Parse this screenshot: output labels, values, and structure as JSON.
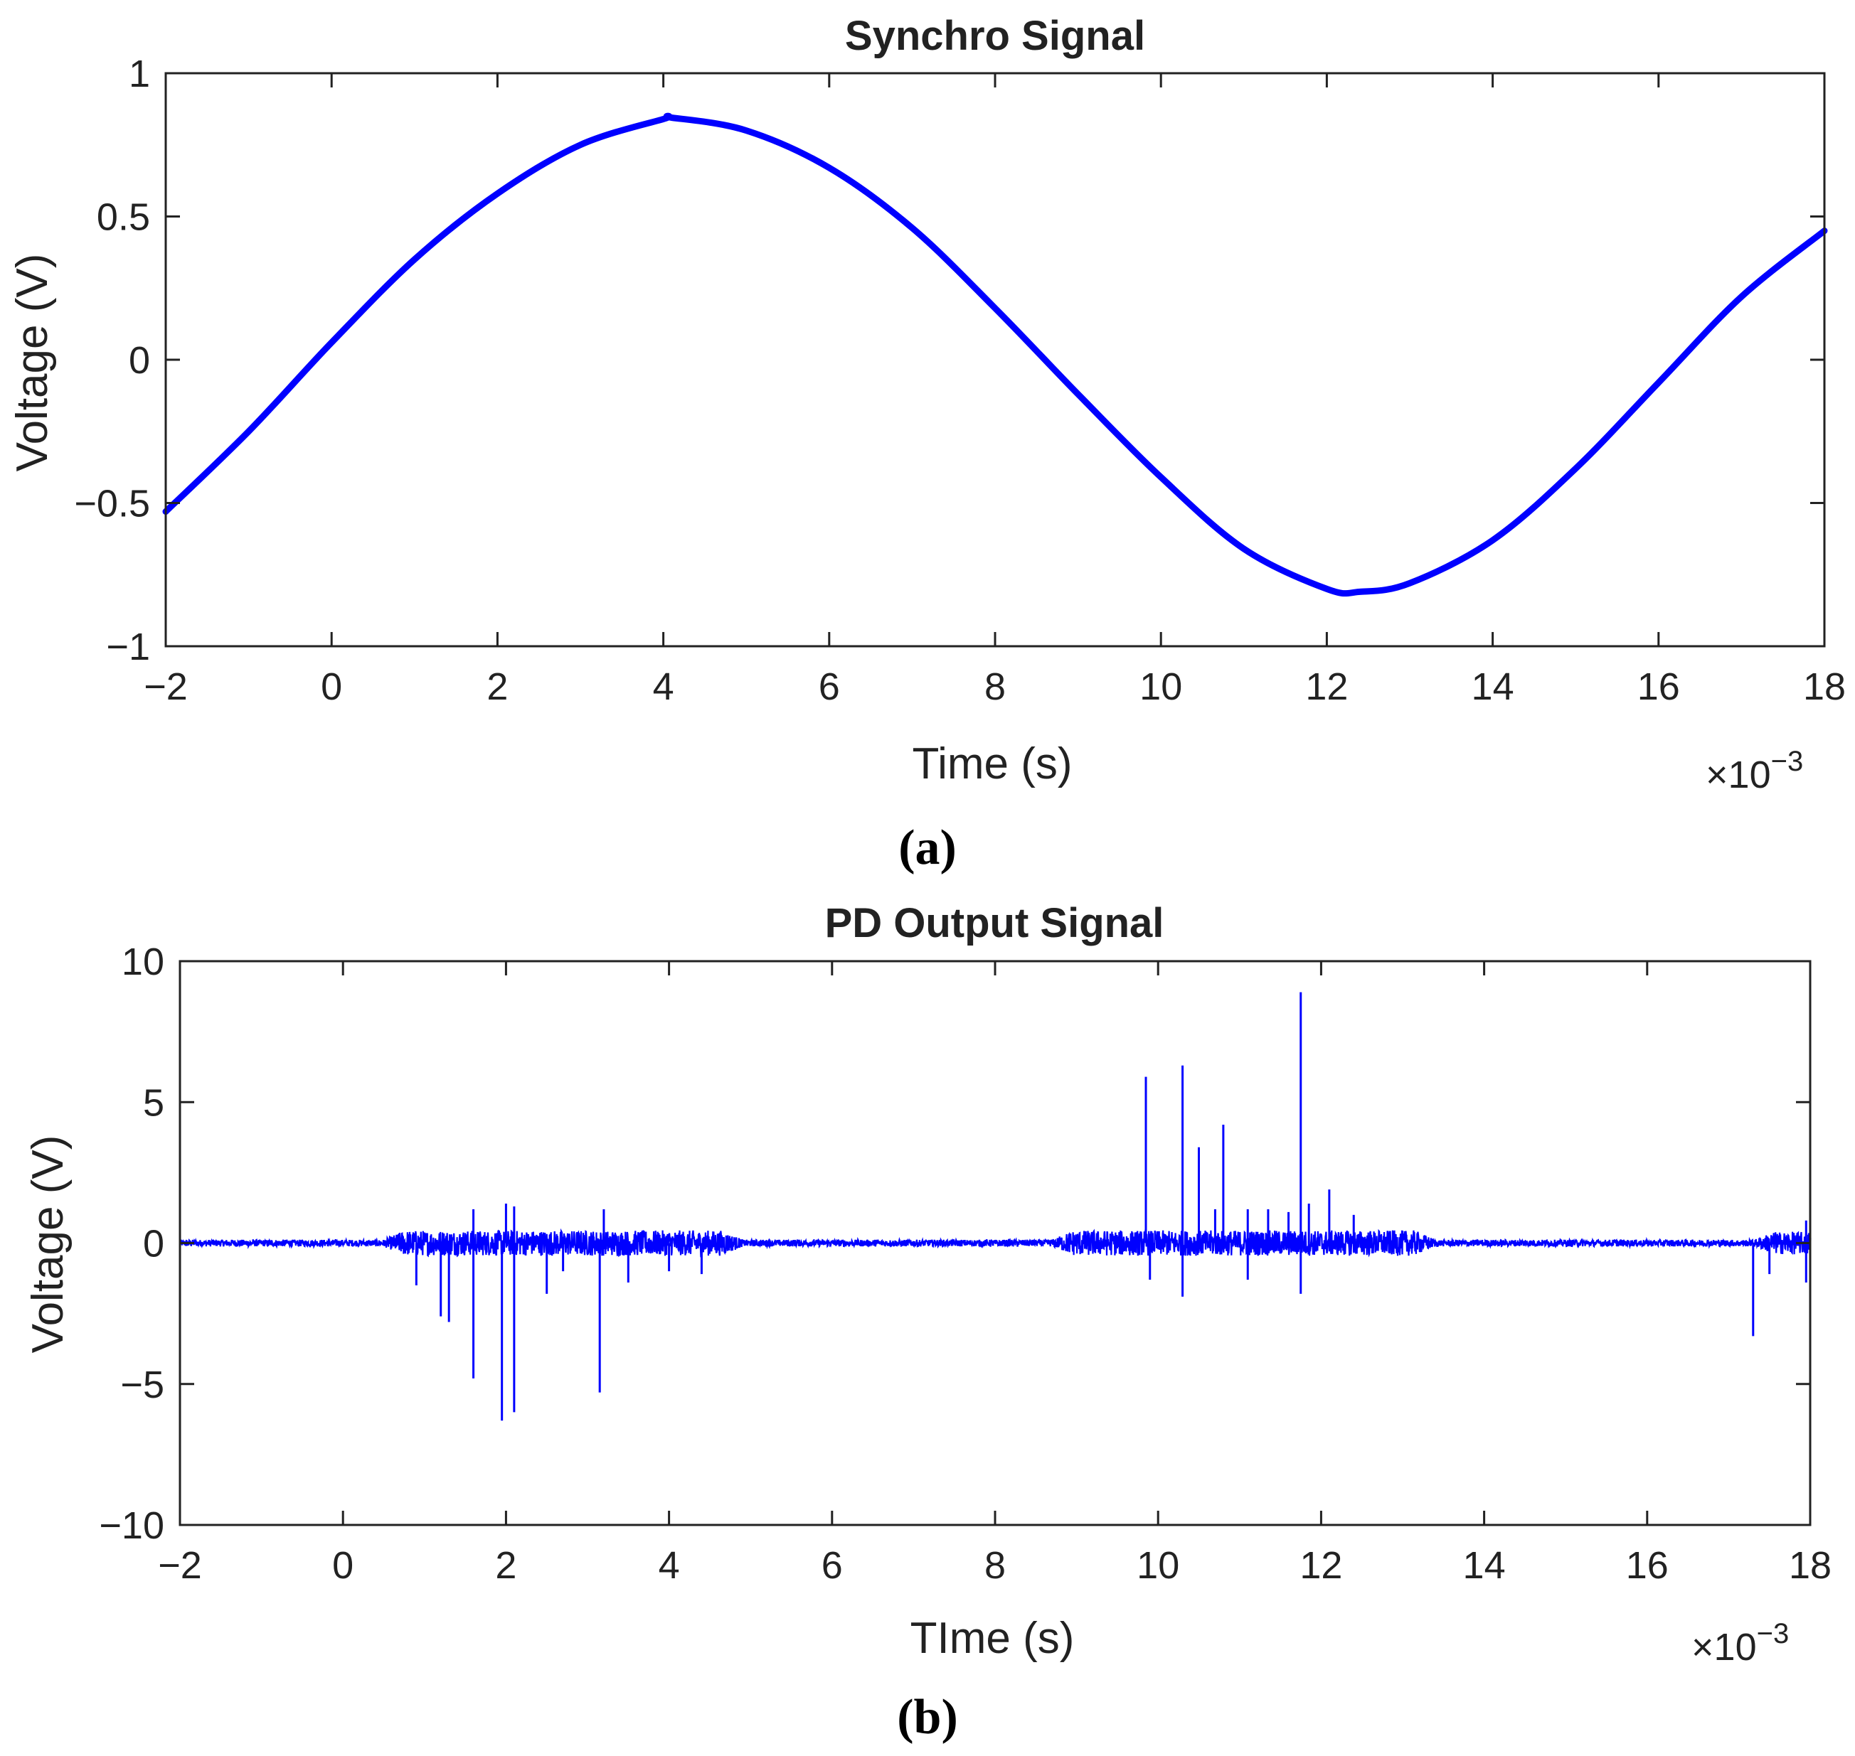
{
  "figure": {
    "panels": [
      {
        "panel_label": "(a)"
      },
      {
        "panel_label": "(b)"
      }
    ]
  },
  "chart_data": [
    {
      "type": "line",
      "title": "Synchro Signal",
      "xlabel": "Time (s)",
      "ylabel": "Voltage (V)",
      "x_multiplier": "×10",
      "x_multiplier_exponent": "−3",
      "xlim": [
        -2,
        18
      ],
      "ylim": [
        -1,
        1
      ],
      "xticks": [
        -2,
        0,
        2,
        4,
        6,
        8,
        10,
        12,
        14,
        16,
        18
      ],
      "xtick_labels": [
        "−2",
        "0",
        "2",
        "4",
        "6",
        "8",
        "10",
        "12",
        "14",
        "16",
        "18"
      ],
      "yticks": [
        1,
        0.5,
        0,
        -0.5,
        -1
      ],
      "ytick_labels": [
        "1",
        "0.5",
        "0",
        "−0.5",
        "−1"
      ],
      "grid": false,
      "color": "#0000ff",
      "series": [
        {
          "x": [
            -2,
            -1,
            0,
            1,
            2,
            3,
            4,
            4.1,
            5,
            6,
            7,
            8,
            9,
            10,
            11,
            12,
            12.4,
            13,
            14,
            15,
            16,
            17,
            18
          ],
          "y": [
            -0.53,
            -0.25,
            0.06,
            0.35,
            0.58,
            0.75,
            0.84,
            0.845,
            0.8,
            0.67,
            0.46,
            0.18,
            -0.12,
            -0.41,
            -0.66,
            -0.8,
            -0.81,
            -0.78,
            -0.63,
            -0.38,
            -0.08,
            0.22,
            0.45
          ]
        }
      ]
    },
    {
      "type": "line",
      "title": "PD Output Signal",
      "xlabel": "TIme (s)",
      "ylabel": "Voltage (V)",
      "x_multiplier": "×10",
      "x_multiplier_exponent": "−3",
      "xlim": [
        -2,
        18
      ],
      "ylim": [
        -10,
        10
      ],
      "xticks": [
        -2,
        0,
        2,
        4,
        6,
        8,
        10,
        12,
        14,
        16,
        18
      ],
      "xtick_labels": [
        "−2",
        "0",
        "2",
        "4",
        "6",
        "8",
        "10",
        "12",
        "14",
        "16",
        "18"
      ],
      "yticks": [
        10,
        5,
        0,
        -5,
        -10
      ],
      "ytick_labels": [
        "10",
        "5",
        "0",
        "−5",
        "−10"
      ],
      "grid": false,
      "color": "#0000ff",
      "noise_bands": [
        {
          "x": [
            0.4,
            5.0
          ],
          "amplitude": 0.45
        },
        {
          "x": [
            8.6,
            13.5
          ],
          "amplitude": 0.45
        },
        {
          "x": [
            17.2,
            18.0
          ],
          "amplitude": 0.4
        }
      ],
      "baseline_amplitude": 0.12,
      "spikes": [
        {
          "x": 0.9,
          "y": -1.5
        },
        {
          "x": 1.2,
          "y": -2.6
        },
        {
          "x": 1.3,
          "y": -2.8
        },
        {
          "x": 1.6,
          "y": -4.8
        },
        {
          "x": 1.6,
          "y": 1.2
        },
        {
          "x": 1.95,
          "y": -6.3
        },
        {
          "x": 2.0,
          "y": 1.4
        },
        {
          "x": 2.1,
          "y": -6.0
        },
        {
          "x": 2.1,
          "y": 1.3
        },
        {
          "x": 2.5,
          "y": -1.8
        },
        {
          "x": 2.7,
          "y": -1.0
        },
        {
          "x": 3.15,
          "y": -5.3
        },
        {
          "x": 3.2,
          "y": 1.2
        },
        {
          "x": 3.5,
          "y": -1.4
        },
        {
          "x": 4.0,
          "y": -1.0
        },
        {
          "x": 4.4,
          "y": -1.1
        },
        {
          "x": 9.85,
          "y": 5.9
        },
        {
          "x": 9.9,
          "y": -1.3
        },
        {
          "x": 10.3,
          "y": 6.3
        },
        {
          "x": 10.3,
          "y": -1.9
        },
        {
          "x": 10.5,
          "y": 3.4
        },
        {
          "x": 10.7,
          "y": 1.2
        },
        {
          "x": 10.8,
          "y": 4.2
        },
        {
          "x": 11.1,
          "y": 1.2
        },
        {
          "x": 11.1,
          "y": -1.3
        },
        {
          "x": 11.35,
          "y": 1.2
        },
        {
          "x": 11.6,
          "y": 1.1
        },
        {
          "x": 11.75,
          "y": 8.9
        },
        {
          "x": 11.75,
          "y": -1.8
        },
        {
          "x": 11.85,
          "y": 1.4
        },
        {
          "x": 12.1,
          "y": 1.9
        },
        {
          "x": 12.4,
          "y": 1.0
        },
        {
          "x": 17.3,
          "y": -3.3
        },
        {
          "x": 17.5,
          "y": -1.1
        },
        {
          "x": 17.95,
          "y": -1.4
        },
        {
          "x": 17.95,
          "y": 0.8
        }
      ]
    }
  ]
}
